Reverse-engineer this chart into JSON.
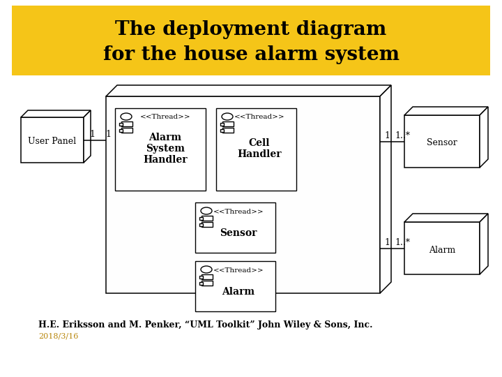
{
  "title_line1": "The deployment diagram",
  "title_line2": "for the house alarm system",
  "title_bg": "#F5C518",
  "title_color": "#000000",
  "bg_color": "#FFFFFF",
  "footnote": "H.E. Eriksson and M. Penker, “UML Toolkit” John Wiley & Sons, Inc.",
  "date": "2018/3/16",
  "date_color": "#B8860B"
}
